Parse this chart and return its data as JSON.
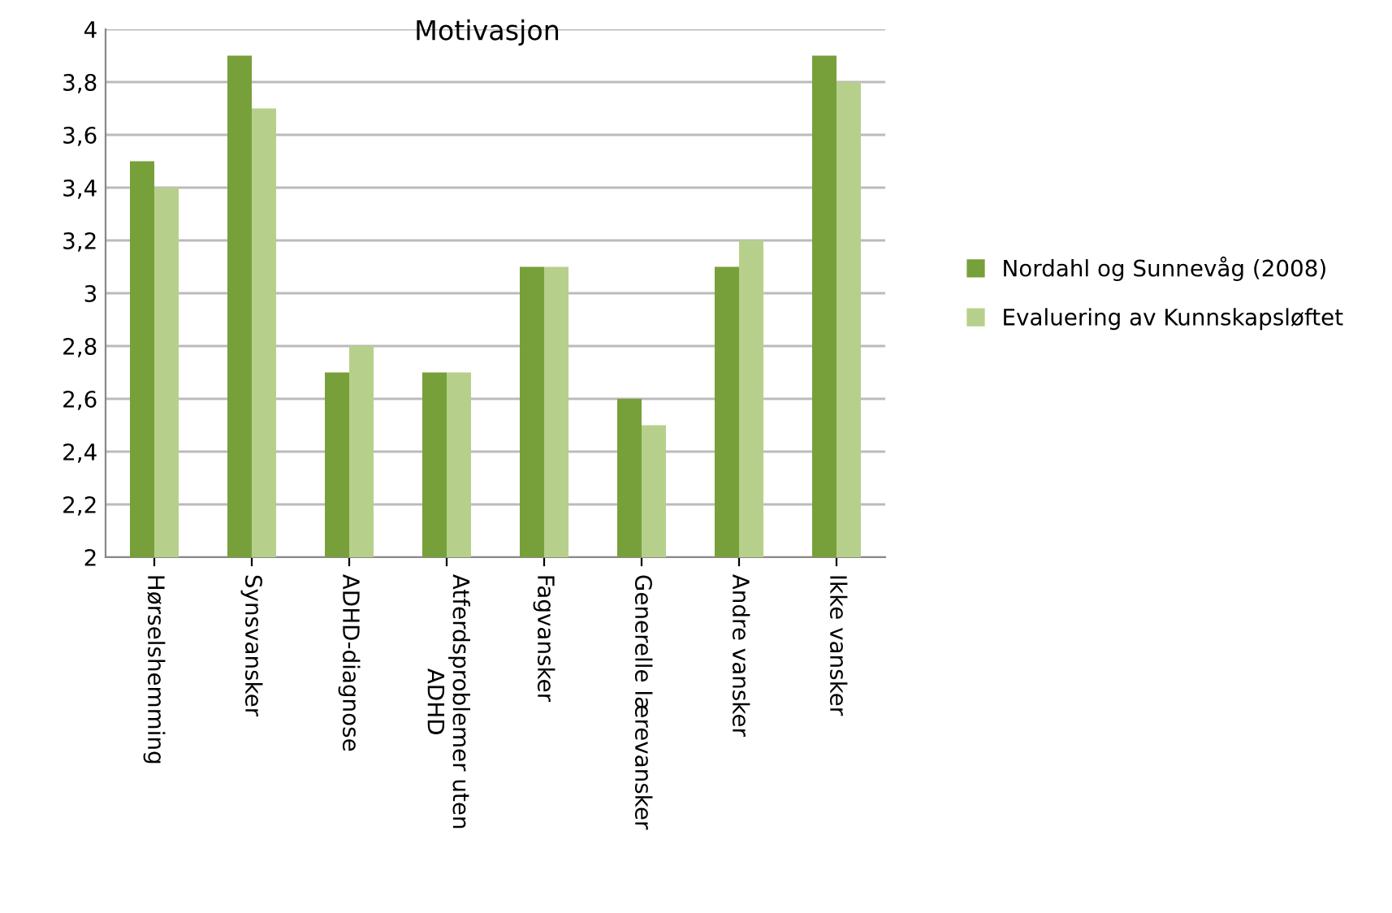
{
  "chart_data": {
    "type": "bar",
    "title": "Motivasjon",
    "categories": [
      "Hørselshemming",
      "Synsvansker",
      "ADHD-diagnose",
      "Atferdsproblemer uten\nADHD",
      "Fagvansker",
      "Generelle lærevansker",
      "Andre vansker",
      "Ikke vansker"
    ],
    "series": [
      {
        "name": "Nordahl og Sunnevåg (2008)",
        "color": "#77a03a",
        "values": [
          3.5,
          3.9,
          2.7,
          2.7,
          3.1,
          2.6,
          3.1,
          3.9
        ]
      },
      {
        "name": "Evaluering av Kunnskapsløftet",
        "color": "#b6d08b",
        "values": [
          3.4,
          3.7,
          2.8,
          2.7,
          3.1,
          2.5,
          3.2,
          3.8
        ]
      }
    ],
    "ylim": [
      2,
      4
    ],
    "yticks": [
      2,
      {
        "value": 2.2,
        "label": "2,2"
      },
      {
        "value": 2.4,
        "label": "2,4"
      },
      {
        "value": 2.6,
        "label": "2,6"
      },
      {
        "value": 2.8,
        "label": "2,8"
      },
      3,
      {
        "value": 3.2,
        "label": "3,2"
      },
      {
        "value": 3.4,
        "label": "3,4"
      },
      {
        "value": 3.6,
        "label": "3,6"
      },
      {
        "value": 3.8,
        "label": "3,8"
      },
      4
    ],
    "grid": "y",
    "legend": "right"
  }
}
